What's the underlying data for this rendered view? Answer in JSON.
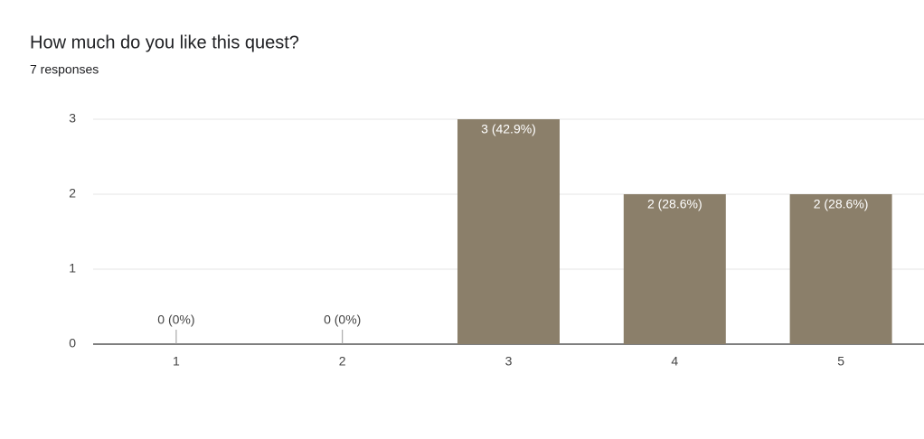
{
  "chart_data": {
    "type": "bar",
    "title": "How much do you like this quest?",
    "subtitle": "7 responses",
    "categories": [
      "1",
      "2",
      "3",
      "4",
      "5"
    ],
    "values": [
      0,
      0,
      3,
      2,
      2
    ],
    "value_labels": [
      "0 (0%)",
      "0 (0%)",
      "3 (42.9%)",
      "2 (28.6%)",
      "2 (28.6%)"
    ],
    "color": "#8b7f6a",
    "ylim": [
      0,
      3
    ],
    "yticks": [
      0,
      1,
      2,
      3
    ],
    "grid": true
  }
}
